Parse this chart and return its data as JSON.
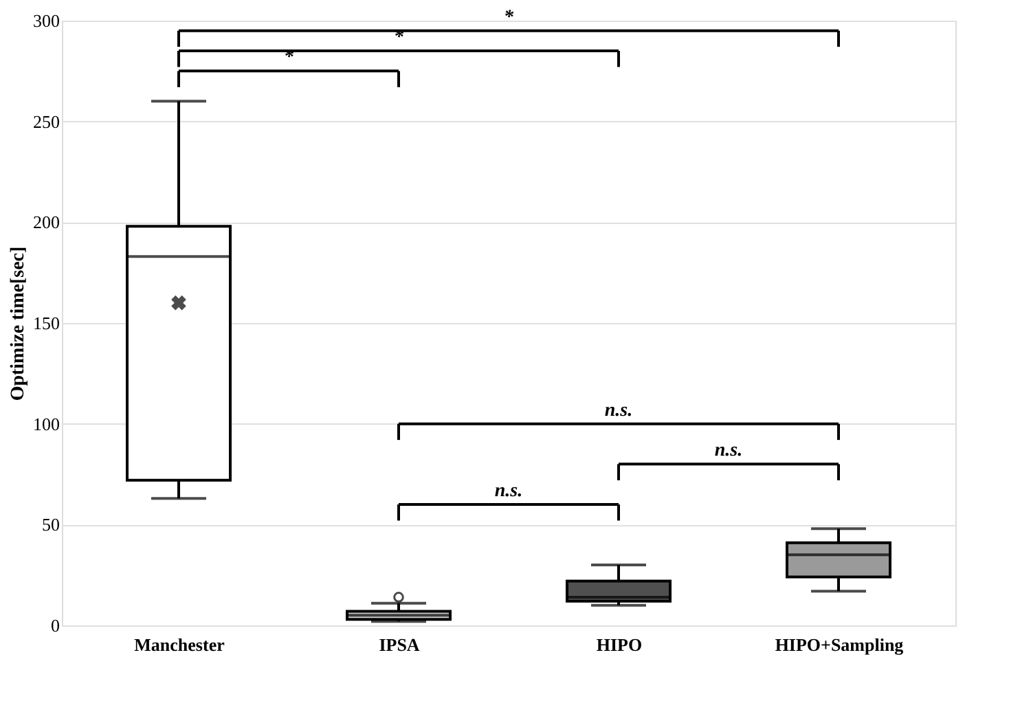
{
  "chart_data": {
    "type": "box",
    "ylabel": "Optimize time[sec]",
    "categories": [
      "Manchester",
      "IPSA",
      "HIPO",
      "HIPO+Sampling"
    ],
    "boxes": [
      {
        "low": 63,
        "q1": 72,
        "median": 183,
        "q3": 198,
        "high": 260,
        "mean": 160
      },
      {
        "low": 2,
        "q1": 3,
        "median": 5,
        "q3": 7,
        "high": 11,
        "outliers": [
          14
        ]
      },
      {
        "low": 10,
        "q1": 12,
        "median": 14,
        "q3": 22,
        "high": 30
      },
      {
        "low": 17,
        "q1": 24,
        "median": 35,
        "q3": 41,
        "high": 48
      }
    ],
    "colors": [
      "#ffffff",
      "#c8c8c8",
      "#505050",
      "#9a9a9a"
    ],
    "ylim": [
      0,
      300
    ],
    "yticks": [
      0,
      50,
      100,
      150,
      200,
      250,
      300
    ],
    "grid": "y",
    "annotations": [
      "*",
      "*",
      "*",
      "n.s.",
      "n.s.",
      "n.s."
    ]
  }
}
